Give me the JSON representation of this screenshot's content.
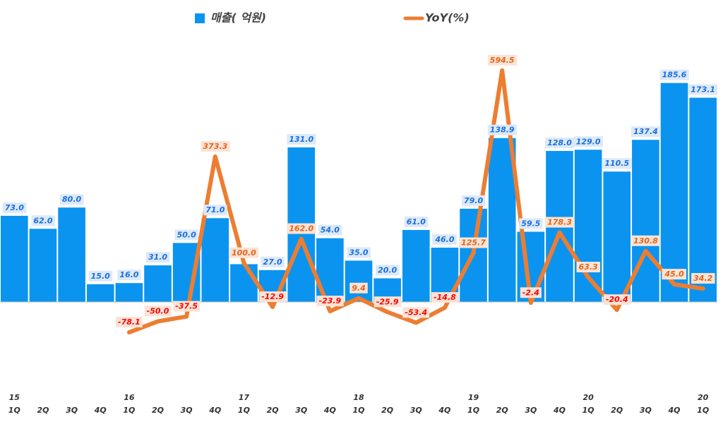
{
  "chart_data": {
    "type": "bar_line",
    "categories": [
      "1Q",
      "2Q",
      "3Q",
      "4Q",
      "1Q",
      "2Q",
      "3Q",
      "4Q",
      "1Q",
      "2Q",
      "3Q",
      "4Q",
      "1Q",
      "2Q",
      "3Q",
      "4Q",
      "1Q",
      "2Q",
      "3Q",
      "4Q",
      "1Q",
      "2Q",
      "3Q",
      "4Q",
      "1Q"
    ],
    "years": [
      "15",
      null,
      null,
      null,
      "16",
      null,
      null,
      null,
      "17",
      null,
      null,
      null,
      "18",
      null,
      null,
      null,
      "19",
      null,
      null,
      null,
      "20",
      null,
      null,
      null,
      "20"
    ],
    "series": [
      {
        "name": "매출( 억원)",
        "color": "#0b94ef",
        "label_color": "#1a6fe0",
        "label_bg": "#dce9f7",
        "values": [
          73,
          62,
          80,
          15,
          16,
          31,
          50,
          71,
          32,
          27,
          131,
          54,
          35,
          20,
          61,
          46,
          79,
          138.9,
          59.5,
          128,
          129,
          110.5,
          137.4,
          185.6,
          173.1
        ],
        "value_labels": [
          "73.0",
          "62.0",
          "80.0",
          "15.0",
          "16.0",
          "31.0",
          "50.0",
          "71.0",
          null,
          "27.0",
          "131.0",
          "54.0",
          "35.0",
          "20.0",
          "61.0",
          "46.0",
          "79.0",
          "138.9",
          "59.5",
          "128.0",
          "129.0",
          "110.5",
          "137.4",
          "185.6",
          "173.1"
        ]
      },
      {
        "name": "YoY(%)",
        "color": "#ed7d31",
        "axis": "y2",
        "label_color": "#e0661a",
        "negative_label_color": "#ff0000",
        "label_bg": "#fbe3d5",
        "values": [
          null,
          null,
          null,
          null,
          -78.1,
          -50,
          -37.5,
          373.3,
          100,
          -12.9,
          162,
          -23.9,
          9.4,
          -25.9,
          -53.4,
          -14.8,
          125.7,
          594.5,
          -2.4,
          178.3,
          63.3,
          -20.4,
          130.8,
          45,
          34.2
        ],
        "value_labels": [
          null,
          null,
          null,
          null,
          "-78.1",
          "-50.0",
          "-37.5",
          "373.3",
          "100.0",
          "-12.9",
          "162.0",
          "-23.9",
          "9.4",
          "-25.9",
          "-53.4",
          "-14.8",
          "125.7",
          "594.5",
          "-2.4",
          "178.3",
          "63.3",
          "-20.4",
          "130.8",
          "45.0",
          "34.2"
        ]
      }
    ],
    "ylim": [
      -67,
      238
    ],
    "y2lim": [
      -203,
      721
    ],
    "legend": "top"
  }
}
